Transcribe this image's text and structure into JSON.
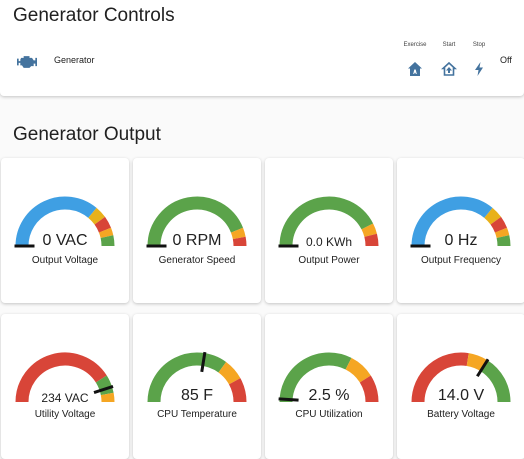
{
  "controls": {
    "title": "Generator Controls",
    "generator_label": "Generator",
    "exercise_label": "Exercise",
    "start_label": "Start",
    "stop_label": "Stop",
    "state": "Off",
    "icons": {
      "generator": "engine-icon",
      "exercise": "home-auto-icon",
      "start": "home-import-icon",
      "stop": "flash-icon"
    },
    "icon_color": "#44739e"
  },
  "output": {
    "title": "Generator Output",
    "gauges": [
      {
        "label": "Output Voltage",
        "value": "0 VAC",
        "level": 0.0,
        "segments": [
          [
            "#3f9fe3",
            0.72
          ],
          [
            "#e8b11a",
            0.8
          ],
          [
            "#d84538",
            0.88
          ],
          [
            "#f5a623",
            0.93
          ],
          [
            "#5ba34a",
            1.0
          ]
        ]
      },
      {
        "label": "Generator Speed",
        "value": "0 RPM",
        "level": 0.0,
        "segments": [
          [
            "#5ba34a",
            0.88
          ],
          [
            "#f5a623",
            0.94
          ],
          [
            "#d84538",
            1.0
          ]
        ]
      },
      {
        "label": "Output Power",
        "value": "0.0 KWh",
        "level": 0.0,
        "segments": [
          [
            "#5ba34a",
            0.85
          ],
          [
            "#f5a623",
            0.92
          ],
          [
            "#d84538",
            1.0
          ]
        ]
      },
      {
        "label": "Output Frequency",
        "value": "0 Hz",
        "level": 0.0,
        "segments": [
          [
            "#3f9fe3",
            0.72
          ],
          [
            "#e8b11a",
            0.8
          ],
          [
            "#d84538",
            0.88
          ],
          [
            "#f5a623",
            0.93
          ],
          [
            "#5ba34a",
            1.0
          ]
        ]
      },
      {
        "label": "Utility Voltage",
        "value": "234 VAC",
        "level": 0.9,
        "segments": [
          [
            "#d84538",
            0.82
          ],
          [
            "#5ba34a",
            0.94
          ],
          [
            "#f5a623",
            1.0
          ]
        ]
      },
      {
        "label": "CPU Temperature",
        "value": "85 F",
        "level": 0.55,
        "segments": [
          [
            "#5ba34a",
            0.7
          ],
          [
            "#f5a623",
            0.84
          ],
          [
            "#d84538",
            1.0
          ]
        ]
      },
      {
        "label": "CPU Utilization",
        "value": "2.5 %",
        "level": 0.02,
        "segments": [
          [
            "#5ba34a",
            0.65
          ],
          [
            "#f5a623",
            0.82
          ],
          [
            "#d84538",
            1.0
          ]
        ]
      },
      {
        "label": "Battery Voltage",
        "value": "14.0 V",
        "level": 0.68,
        "segments": [
          [
            "#d84538",
            0.55
          ],
          [
            "#f5a623",
            0.68
          ],
          [
            "#5ba34a",
            1.0
          ]
        ]
      }
    ]
  }
}
